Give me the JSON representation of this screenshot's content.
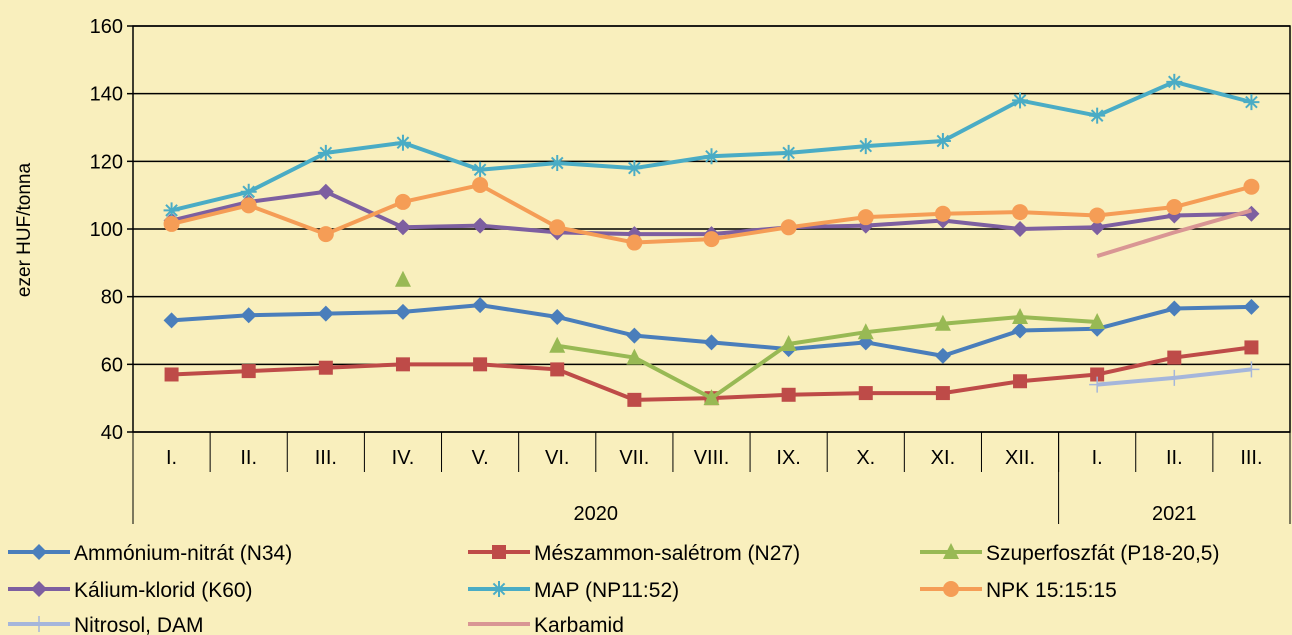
{
  "chart_data": {
    "type": "line",
    "ylabel": "ezer HUF/tonna",
    "ylim": [
      40,
      160
    ],
    "yticks": [
      40,
      60,
      80,
      100,
      120,
      140,
      160
    ],
    "grid": true,
    "legend_position": "bottom",
    "categories": [
      "I.",
      "II.",
      "III.",
      "IV.",
      "V.",
      "VI.",
      "VII.",
      "VIII.",
      "IX.",
      "X.",
      "XI.",
      "XII.",
      "I.",
      "II.",
      "III."
    ],
    "year_groups": [
      {
        "label": "2020",
        "from": 0,
        "to": 11
      },
      {
        "label": "2021",
        "from": 12,
        "to": 14
      }
    ],
    "series": [
      {
        "name": "Ammónium-nitrát (N34)",
        "color": "#4a7ebb",
        "marker": "diamond",
        "values": [
          73,
          74.5,
          75,
          75.5,
          77.5,
          74,
          68.5,
          66.5,
          64.5,
          66.5,
          62.5,
          70,
          70.5,
          76.5,
          77
        ]
      },
      {
        "name": "Mészammon-salétrom (N27)",
        "color": "#be4b48",
        "marker": "square",
        "values": [
          57,
          58,
          59,
          60,
          60,
          58.5,
          49.5,
          50,
          51,
          51.5,
          51.5,
          55,
          57,
          62,
          65
        ]
      },
      {
        "name": "Szuperfoszfát (P18-20,5)",
        "color": "#98b954",
        "marker": "triangle",
        "values": [
          null,
          null,
          null,
          85,
          null,
          65.5,
          62,
          50,
          66,
          69.5,
          72,
          74,
          72.5,
          null,
          null
        ]
      },
      {
        "name": "Kálium-klorid (K60)",
        "color": "#7d5fa0",
        "marker": "diamond",
        "values": [
          102.5,
          108,
          111,
          100.5,
          101,
          99,
          98.5,
          98.5,
          100.5,
          101,
          102.5,
          100,
          100.5,
          104,
          104.5
        ]
      },
      {
        "name": "MAP (NP11:52)",
        "color": "#4aacc5",
        "marker": "star",
        "values": [
          105.5,
          111,
          122.5,
          125.5,
          117.5,
          119.5,
          118,
          121.5,
          122.5,
          124.5,
          126,
          138,
          133.5,
          143.5,
          137.5
        ]
      },
      {
        "name": "NPK 15:15:15",
        "color": "#f59d56",
        "marker": "circle",
        "values": [
          101.5,
          107,
          98.5,
          108,
          113,
          100.5,
          96,
          97,
          100.5,
          103.5,
          104.5,
          105,
          104,
          106.5,
          112.5
        ]
      },
      {
        "name": "Nitrosol, DAM",
        "color": "#a5b6db",
        "marker": "plus",
        "values": [
          null,
          null,
          null,
          null,
          null,
          null,
          null,
          null,
          null,
          null,
          null,
          null,
          54,
          56,
          58.5
        ]
      },
      {
        "name": "Karbamid",
        "color": "#d99694",
        "marker": "none",
        "values": [
          null,
          null,
          null,
          null,
          null,
          null,
          null,
          null,
          null,
          null,
          null,
          null,
          92,
          99,
          105.5
        ]
      }
    ]
  }
}
